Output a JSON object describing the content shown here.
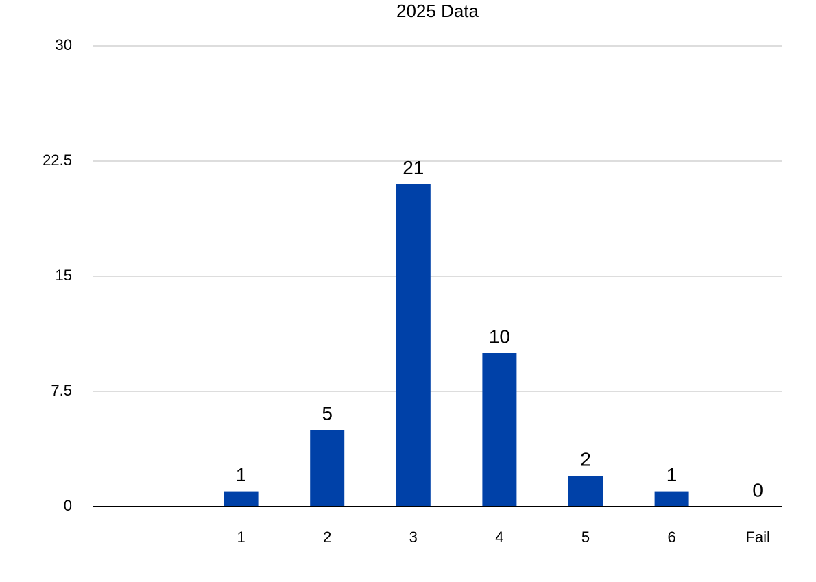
{
  "chart_data": {
    "type": "bar",
    "title": "2025 Data",
    "categories": [
      null,
      "1",
      "2",
      "3",
      "4",
      "5",
      "6",
      "Fail"
    ],
    "values": [
      null,
      1,
      5,
      21,
      10,
      2,
      1,
      0
    ],
    "color": "#0041a8",
    "ylim": [
      0,
      30
    ],
    "yticks": [
      0,
      7.5,
      15,
      22.5,
      30
    ],
    "grid": true
  }
}
